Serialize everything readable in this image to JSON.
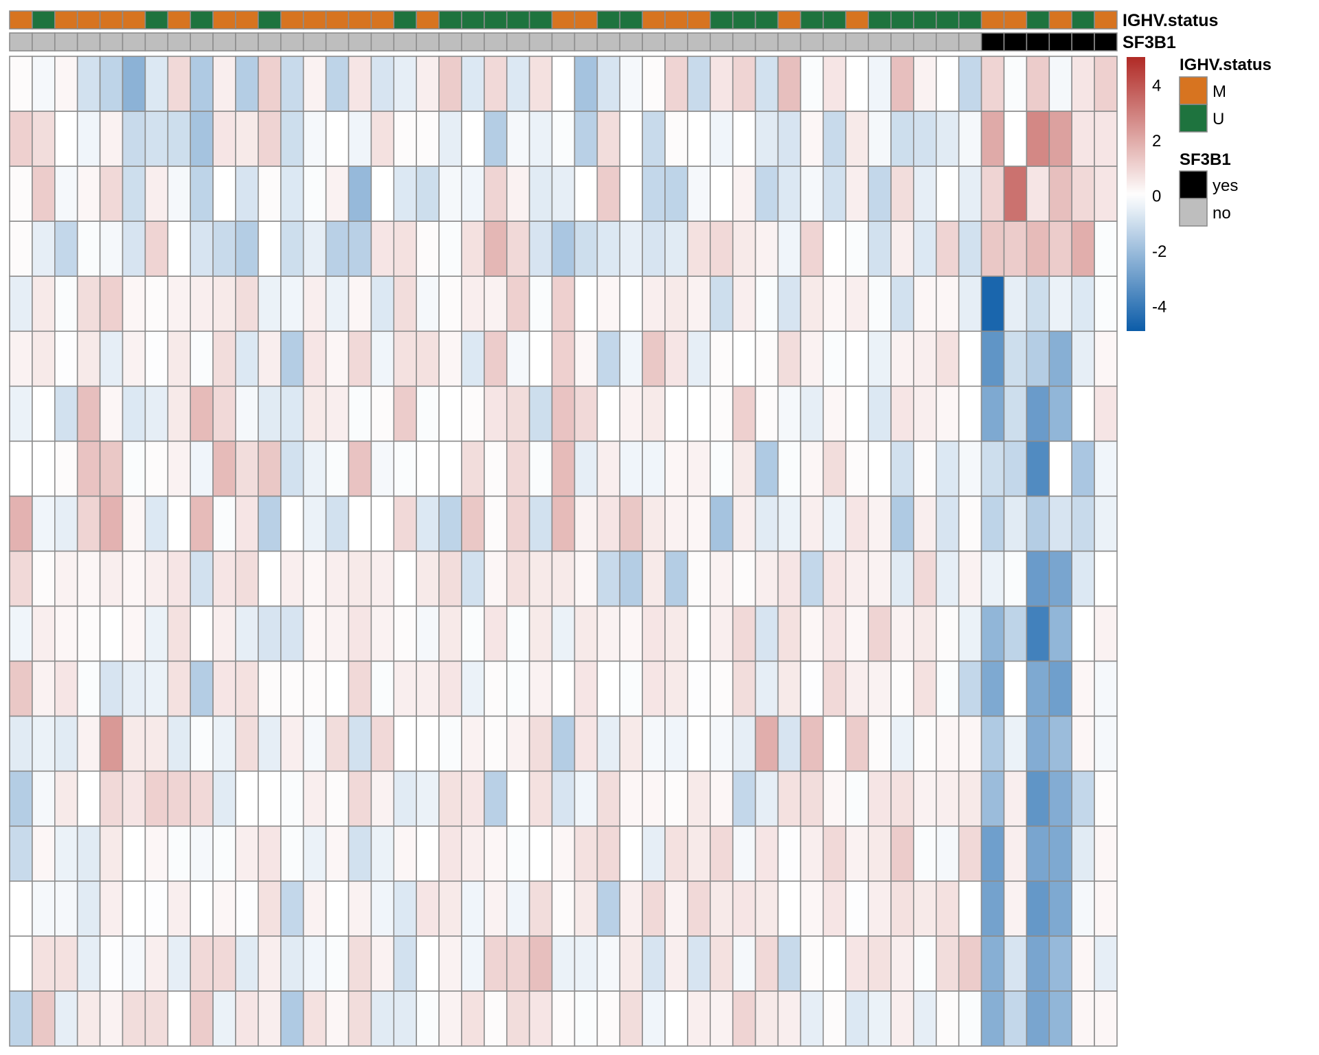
{
  "chart_data": {
    "type": "heatmap",
    "title": "",
    "color_scale": {
      "range": [
        -4.9,
        5.0
      ],
      "low_color": "#0B5CA8",
      "mid_color": "#FFFFFF",
      "high_color": "#B02A25",
      "ticks": [
        4,
        2,
        0,
        -2,
        -4
      ],
      "tick_labels": [
        "4",
        "2",
        "0",
        "-2",
        "-4"
      ]
    },
    "cell_border_color": "#8C8C8C",
    "column_annotations": [
      {
        "name": "IGHV.status",
        "values": [
          "M",
          "U",
          "M",
          "M",
          "M",
          "M",
          "U",
          "M",
          "U",
          "M",
          "M",
          "U",
          "M",
          "M",
          "M",
          "M",
          "M",
          "U",
          "M",
          "U",
          "U",
          "U",
          "U",
          "U",
          "M",
          "M",
          "U",
          "U",
          "M",
          "M",
          "M",
          "U",
          "U",
          "U",
          "M",
          "U",
          "U",
          "M",
          "U",
          "U",
          "U",
          "U",
          "U",
          "M",
          "M",
          "U",
          "M",
          "U",
          "M"
        ],
        "levels": [
          {
            "label": "M",
            "color": "#D77420"
          },
          {
            "label": "U",
            "color": "#1E733E"
          }
        ]
      },
      {
        "name": "SF3B1",
        "values": [
          "no",
          "no",
          "no",
          "no",
          "no",
          "no",
          "no",
          "no",
          "no",
          "no",
          "no",
          "no",
          "no",
          "no",
          "no",
          "no",
          "no",
          "no",
          "no",
          "no",
          "no",
          "no",
          "no",
          "no",
          "no",
          "no",
          "no",
          "no",
          "no",
          "no",
          "no",
          "no",
          "no",
          "no",
          "no",
          "no",
          "no",
          "no",
          "no",
          "no",
          "no",
          "no",
          "no",
          "yes",
          "yes",
          "yes",
          "yes",
          "yes",
          "yes"
        ],
        "levels": [
          {
            "label": "yes",
            "color": "#000000"
          },
          {
            "label": "no",
            "color": "#BEBEBE"
          }
        ]
      }
    ],
    "values": [
      [
        0.1,
        -0.2,
        0.2,
        -0.9,
        -1.3,
        -2.3,
        -0.7,
        0.9,
        -1.6,
        0.4,
        -1.5,
        1.1,
        -1.1,
        0.3,
        -1.3,
        0.6,
        -0.8,
        -0.5,
        0.4,
        1.2,
        -0.7,
        0.9,
        -0.7,
        0.7,
        0.0,
        -1.8,
        -0.8,
        -0.2,
        0.1,
        1.0,
        -1.1,
        0.6,
        1.0,
        -0.9,
        1.5,
        -0.1,
        0.6,
        0.0,
        -0.3,
        1.5,
        0.3,
        0.0,
        -1.2,
        1.0,
        -0.1,
        1.2,
        -0.2,
        0.6,
        1.1
      ],
      [
        1.1,
        0.8,
        0.0,
        -0.3,
        0.3,
        -1.1,
        -0.9,
        -1.0,
        -1.8,
        0.6,
        0.5,
        1.0,
        -1.0,
        -0.2,
        0.0,
        -0.3,
        0.7,
        0.1,
        0.1,
        -0.5,
        0.0,
        -1.5,
        -0.2,
        -0.4,
        -0.1,
        -1.4,
        0.8,
        0.0,
        -1.1,
        0.1,
        0.0,
        -0.3,
        0.0,
        -0.6,
        -0.8,
        0.2,
        -1.1,
        0.5,
        -0.2,
        -1.0,
        -0.9,
        -0.6,
        -0.2,
        2.0,
        0.0,
        2.8,
        2.2,
        0.6,
        0.6
      ],
      [
        0.1,
        1.2,
        -0.2,
        0.2,
        0.9,
        -1.0,
        0.4,
        -0.2,
        -1.3,
        0.0,
        -0.8,
        0.1,
        -0.7,
        -0.1,
        0.3,
        -2.1,
        0.0,
        -0.7,
        -1.0,
        -0.2,
        -0.3,
        1.0,
        0.3,
        -0.6,
        -0.5,
        0.0,
        1.2,
        0.0,
        -1.2,
        -1.3,
        -0.2,
        0.0,
        0.3,
        -1.2,
        -0.7,
        -0.2,
        -0.9,
        0.4,
        -1.2,
        0.8,
        -0.5,
        0.0,
        -0.5,
        1.0,
        3.3,
        0.6,
        1.5,
        0.9,
        0.6
      ],
      [
        0.1,
        -0.5,
        -1.2,
        -0.1,
        -0.2,
        -0.8,
        1.0,
        0.0,
        -0.8,
        -1.1,
        -1.5,
        0.0,
        -1.0,
        -0.5,
        -1.4,
        -1.4,
        0.6,
        0.7,
        0.1,
        -0.1,
        0.7,
        1.7,
        0.9,
        -0.8,
        -1.7,
        -1.0,
        -0.7,
        -0.5,
        -0.8,
        -0.6,
        0.7,
        0.9,
        0.5,
        0.3,
        -0.3,
        1.0,
        0.0,
        -0.1,
        -0.9,
        0.4,
        -0.7,
        1.0,
        -0.9,
        1.3,
        1.2,
        1.6,
        1.2,
        1.9,
        -0.1
      ],
      [
        -0.5,
        0.5,
        -0.1,
        0.8,
        1.1,
        0.2,
        0.1,
        0.3,
        0.4,
        0.5,
        0.8,
        -0.4,
        -0.3,
        0.4,
        -0.4,
        0.2,
        -0.7,
        0.8,
        -0.2,
        0.1,
        0.4,
        0.3,
        1.1,
        -0.1,
        1.1,
        0.0,
        0.2,
        0.0,
        0.4,
        0.5,
        0.3,
        -1.0,
        0.4,
        -0.1,
        -0.8,
        0.5,
        0.2,
        0.4,
        -0.1,
        -0.9,
        0.2,
        0.2,
        -0.5,
        -4.6,
        -0.5,
        -1.0,
        -0.4,
        -0.7,
        -0.1
      ],
      [
        0.3,
        0.5,
        -0.05,
        0.5,
        -0.5,
        0.3,
        -0.05,
        0.5,
        -0.1,
        0.8,
        -0.7,
        0.4,
        -1.5,
        0.6,
        0.2,
        0.9,
        -0.3,
        0.7,
        0.7,
        0.2,
        -0.7,
        1.2,
        -0.2,
        0.0,
        1.1,
        0.2,
        -1.2,
        -0.3,
        1.3,
        0.6,
        -0.5,
        0.1,
        0.0,
        0.1,
        0.8,
        0.3,
        -0.1,
        0.0,
        -0.4,
        0.3,
        0.4,
        0.7,
        0.0,
        -3.2,
        -1.0,
        -1.5,
        -2.4,
        -0.5,
        0.2
      ],
      [
        -0.4,
        0.0,
        -0.9,
        1.5,
        0.2,
        -0.7,
        -0.5,
        0.5,
        1.6,
        0.9,
        -0.2,
        -0.6,
        -0.7,
        0.5,
        0.4,
        -0.1,
        0.1,
        1.2,
        -0.1,
        0.0,
        0.1,
        0.6,
        0.8,
        -1.0,
        1.4,
        0.9,
        0.0,
        0.3,
        0.5,
        0.0,
        0.0,
        0.1,
        1.1,
        0.1,
        -0.2,
        -0.5,
        0.2,
        0.0,
        -0.7,
        0.6,
        0.4,
        0.2,
        0.0,
        -2.6,
        -1.0,
        -3.0,
        -2.2,
        0.0,
        0.6
      ],
      [
        0.0,
        0.0,
        0.1,
        1.4,
        1.3,
        -0.1,
        0.1,
        0.3,
        -0.3,
        1.6,
        0.8,
        1.3,
        -0.9,
        -0.4,
        -0.1,
        1.4,
        -0.2,
        -0.1,
        0.0,
        0.0,
        0.8,
        0.1,
        0.9,
        -0.1,
        1.6,
        -0.5,
        0.4,
        -0.3,
        -0.3,
        0.2,
        0.3,
        -0.1,
        0.5,
        -1.6,
        -0.1,
        0.2,
        0.8,
        0.1,
        0.0,
        -0.9,
        0.1,
        -0.7,
        -0.2,
        -1.0,
        -1.2,
        -3.5,
        0.0,
        -1.7,
        -0.3
      ],
      [
        1.8,
        -0.3,
        -0.5,
        1.0,
        1.8,
        0.2,
        -0.7,
        0.0,
        1.6,
        -0.1,
        0.6,
        -1.4,
        0.0,
        -0.4,
        -0.9,
        0.0,
        0.0,
        0.9,
        -0.7,
        -1.3,
        1.3,
        0.1,
        1.0,
        -0.9,
        1.6,
        0.3,
        0.6,
        1.3,
        0.5,
        0.3,
        0.2,
        -1.8,
        0.4,
        -0.6,
        -0.4,
        0.4,
        -0.4,
        0.6,
        0.3,
        -1.6,
        0.4,
        -0.8,
        0.1,
        -1.3,
        -0.6,
        -1.5,
        -0.8,
        -1.1,
        -0.4
      ],
      [
        0.9,
        0.1,
        0.3,
        0.2,
        0.4,
        0.2,
        0.4,
        0.6,
        -0.9,
        0.6,
        0.8,
        0.0,
        0.4,
        0.2,
        0.4,
        0.5,
        0.4,
        0.0,
        0.5,
        0.8,
        -0.9,
        0.2,
        0.7,
        0.5,
        0.5,
        0.2,
        -1.1,
        -1.5,
        0.5,
        -1.5,
        0.1,
        0.3,
        0.1,
        0.4,
        0.6,
        -1.2,
        0.6,
        0.4,
        0.3,
        -0.6,
        0.9,
        -0.5,
        0.3,
        -0.4,
        -0.1,
        -3.0,
        -2.7,
        -0.7,
        0.0
      ],
      [
        -0.3,
        0.4,
        0.2,
        0.1,
        0.0,
        0.2,
        -0.4,
        0.7,
        0.0,
        0.4,
        -0.5,
        -0.8,
        -0.8,
        0.2,
        0.3,
        0.6,
        0.3,
        0.1,
        -0.2,
        0.5,
        -0.1,
        0.6,
        -0.1,
        0.5,
        -0.4,
        0.5,
        0.3,
        0.2,
        0.6,
        0.5,
        0.0,
        0.4,
        0.9,
        -0.8,
        0.7,
        0.2,
        0.6,
        0.2,
        1.0,
        0.3,
        0.5,
        0.1,
        -0.4,
        -2.2,
        -1.3,
        -3.8,
        -2.2,
        0.0,
        0.3
      ],
      [
        1.3,
        0.3,
        0.6,
        -0.1,
        -0.8,
        -0.5,
        -0.4,
        0.7,
        -1.5,
        0.6,
        0.7,
        0.1,
        0.1,
        0.1,
        0.0,
        0.9,
        -0.1,
        0.4,
        0.4,
        0.6,
        -0.4,
        0.1,
        -0.1,
        0.3,
        0.0,
        0.6,
        0.0,
        -0.1,
        0.6,
        0.5,
        -0.05,
        0.1,
        0.8,
        -0.5,
        0.5,
        -0.05,
        0.9,
        0.4,
        0.3,
        0.1,
        0.7,
        -0.1,
        -1.2,
        -2.6,
        0.0,
        -2.6,
        -2.9,
        0.2,
        -0.2
      ],
      [
        -0.6,
        -0.4,
        -0.6,
        0.3,
        2.4,
        0.5,
        0.5,
        -0.6,
        -0.1,
        -0.4,
        0.8,
        -0.5,
        0.4,
        -0.2,
        0.8,
        -0.9,
        0.9,
        0.0,
        0.0,
        -0.1,
        0.3,
        0.1,
        0.3,
        0.8,
        -1.5,
        0.6,
        -0.5,
        0.5,
        -0.2,
        -0.3,
        0.0,
        -0.2,
        -0.5,
        1.9,
        -0.8,
        1.5,
        0.0,
        1.2,
        0.1,
        -0.4,
        0.1,
        0.2,
        0.2,
        -1.6,
        -0.4,
        -2.5,
        -2.0,
        0.2,
        -0.2
      ],
      [
        -1.5,
        -0.2,
        0.5,
        0.0,
        0.9,
        0.6,
        1.1,
        1.0,
        0.9,
        -0.6,
        0.0,
        0.0,
        -0.1,
        0.4,
        0.1,
        0.9,
        0.3,
        -0.6,
        -0.4,
        0.7,
        0.6,
        -1.4,
        0.0,
        0.7,
        -0.8,
        -0.3,
        0.8,
        0.2,
        0.2,
        0.1,
        0.5,
        0.2,
        -1.2,
        -0.5,
        0.7,
        0.8,
        0.2,
        -0.1,
        0.6,
        0.7,
        0.3,
        0.4,
        0.5,
        -2.0,
        0.4,
        -3.2,
        -2.5,
        -1.2,
        0.1
      ],
      [
        -1.1,
        0.2,
        -0.4,
        -0.6,
        0.5,
        0.0,
        0.2,
        -0.1,
        -0.2,
        -0.1,
        0.4,
        0.6,
        -0.1,
        -0.4,
        0.2,
        -0.9,
        -0.4,
        0.2,
        0.0,
        0.6,
        0.4,
        0.2,
        -0.1,
        0.0,
        0.2,
        0.7,
        0.9,
        0.0,
        -0.5,
        0.7,
        0.5,
        0.9,
        -0.2,
        0.6,
        -0.05,
        0.4,
        0.9,
        0.3,
        0.5,
        1.2,
        -0.1,
        -0.2,
        0.9,
        -2.9,
        0.4,
        -2.7,
        -2.6,
        -0.6,
        0.2
      ],
      [
        0.0,
        -0.2,
        -0.2,
        -0.6,
        0.4,
        0.0,
        -0.05,
        0.4,
        0.0,
        0.2,
        -0.05,
        0.7,
        -1.2,
        0.3,
        0.0,
        0.3,
        -0.3,
        -0.7,
        0.6,
        0.5,
        -0.3,
        0.3,
        -0.3,
        0.8,
        0.1,
        0.5,
        -1.4,
        0.4,
        0.9,
        0.3,
        0.9,
        0.5,
        0.6,
        0.5,
        0.0,
        0.2,
        0.6,
        -0.05,
        0.4,
        0.7,
        0.5,
        0.7,
        0.0,
        -2.8,
        0.3,
        -3.1,
        -2.6,
        -0.2,
        0.2
      ],
      [
        0.0,
        0.7,
        0.7,
        -0.5,
        -0.05,
        -0.2,
        0.4,
        -0.5,
        0.9,
        0.9,
        -0.6,
        0.4,
        -0.6,
        -0.3,
        -0.1,
        0.8,
        0.3,
        -0.9,
        0.0,
        0.3,
        -0.3,
        1.0,
        1.0,
        1.5,
        -0.4,
        -0.4,
        -0.2,
        0.5,
        -0.8,
        0.4,
        -0.8,
        0.7,
        -0.2,
        0.9,
        -1.1,
        0.1,
        0.0,
        0.6,
        0.7,
        0.4,
        -0.1,
        0.8,
        1.2,
        -2.4,
        -0.8,
        -2.7,
        -2.1,
        0.2,
        -0.5
      ],
      [
        -1.3,
        1.3,
        -0.5,
        0.5,
        0.3,
        0.8,
        0.8,
        0.0,
        1.2,
        -0.4,
        0.6,
        0.4,
        -1.6,
        0.7,
        0.2,
        0.8,
        -0.6,
        -0.6,
        -0.1,
        0.3,
        0.7,
        0.1,
        0.8,
        0.6,
        0.1,
        -0.1,
        0.1,
        0.8,
        -0.3,
        0.0,
        0.4,
        0.3,
        1.0,
        0.5,
        0.4,
        -0.5,
        0.1,
        -0.7,
        -0.4,
        0.4,
        -0.5,
        0.1,
        -0.1,
        -2.4,
        -1.2,
        -2.7,
        -2.2,
        0.2,
        0.2
      ]
    ]
  }
}
